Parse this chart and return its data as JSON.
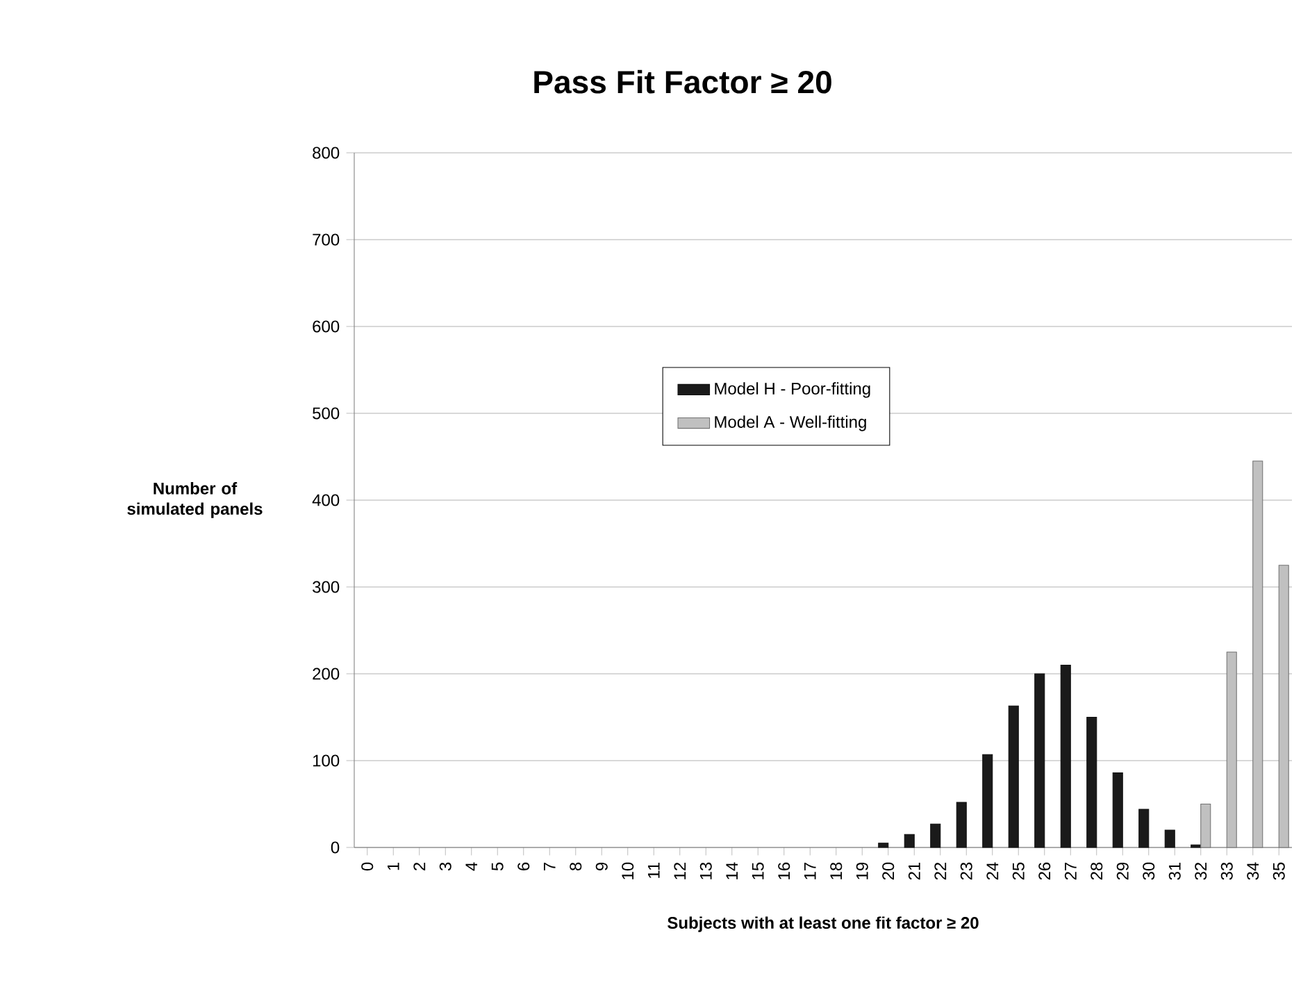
{
  "chart_data": {
    "type": "bar",
    "title": "Pass Fit Factor ≥ 20",
    "xlabel": "Subjects with at least one fit factor ≥ 20",
    "ylabel": "Number of simulated panels",
    "categories": [
      "0",
      "1",
      "2",
      "3",
      "4",
      "5",
      "6",
      "7",
      "8",
      "9",
      "10",
      "11",
      "12",
      "13",
      "14",
      "15",
      "16",
      "17",
      "18",
      "19",
      "20",
      "21",
      "22",
      "23",
      "24",
      "25",
      "26",
      "27",
      "28",
      "29",
      "30",
      "31",
      "32",
      "33",
      "34",
      "35"
    ],
    "series": [
      {
        "name": "Model H - Poor-fitting",
        "color": "#1a1a1a",
        "values": [
          0,
          0,
          0,
          0,
          0,
          0,
          0,
          0,
          0,
          0,
          0,
          0,
          0,
          0,
          0,
          0,
          0,
          0,
          0,
          0,
          5,
          15,
          27,
          52,
          107,
          163,
          200,
          210,
          150,
          86,
          44,
          20,
          3,
          0,
          0,
          0
        ]
      },
      {
        "name": "Model A - Well-fitting",
        "color": "#c0c0c0",
        "values": [
          0,
          0,
          0,
          0,
          0,
          0,
          0,
          0,
          0,
          0,
          0,
          0,
          0,
          0,
          0,
          0,
          0,
          0,
          0,
          0,
          0,
          0,
          0,
          0,
          0,
          0,
          0,
          0,
          0,
          0,
          0,
          0,
          50,
          225,
          445,
          325
        ]
      }
    ],
    "ylim": [
      0,
      800
    ],
    "yticks": [
      0,
      100,
      200,
      300,
      400,
      500,
      600,
      700,
      800
    ],
    "grid": "y",
    "legend": "center"
  }
}
